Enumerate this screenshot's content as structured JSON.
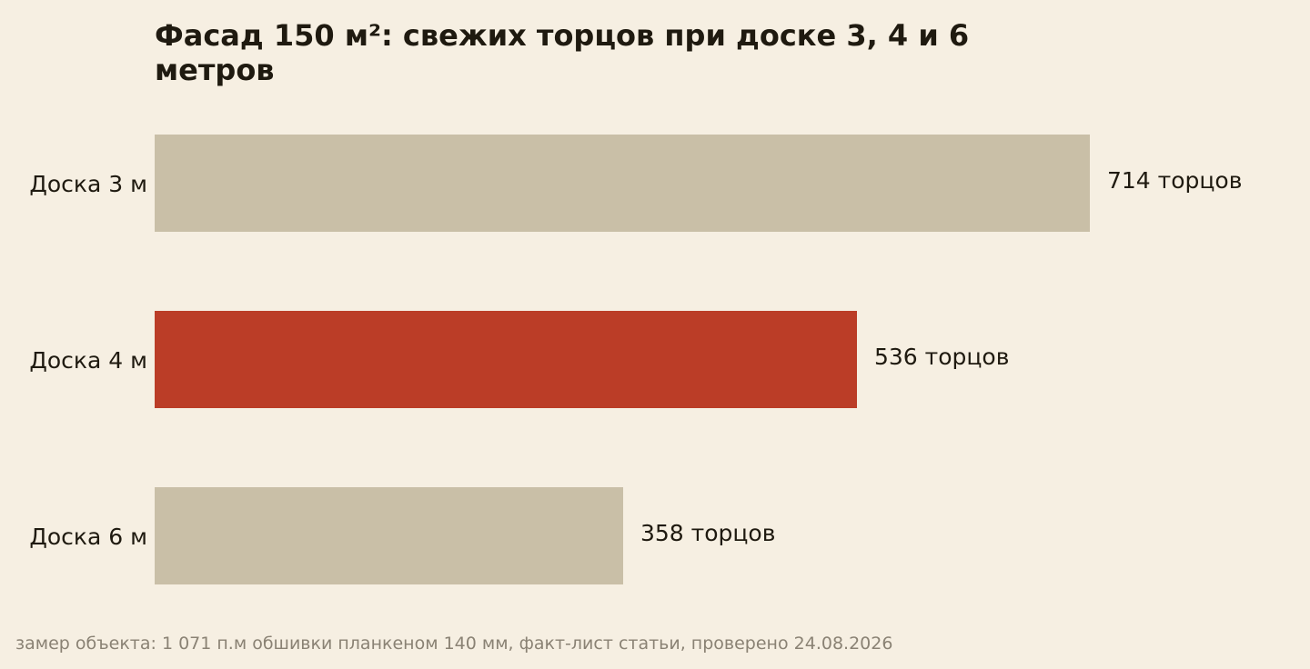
{
  "chart_data": {
    "type": "bar",
    "orientation": "horizontal",
    "title": "Фасад 150 м²: свежих торцов при доске 3, 4 и 6 метров",
    "categories": [
      "Доска 3 м",
      "Доска 4 м",
      "Доска 6 м"
    ],
    "values": [
      714,
      536,
      358
    ],
    "value_labels": [
      "714 торцов",
      "536 торцов",
      "358 торцов"
    ],
    "highlight_index": 1,
    "xlim": [
      0,
      714
    ],
    "xlabel": "",
    "ylabel": "",
    "grid": false,
    "colors": {
      "default": "#c9bfa7",
      "highlight": "#bb3d27",
      "background": "#f6efe2",
      "text": "#1f1a10",
      "footnote": "#8a8274"
    }
  },
  "footnote": "замер объекта: 1 071 п.м обшивки планкеном 140 мм, факт-лист статьи, проверено 24.08.2026"
}
